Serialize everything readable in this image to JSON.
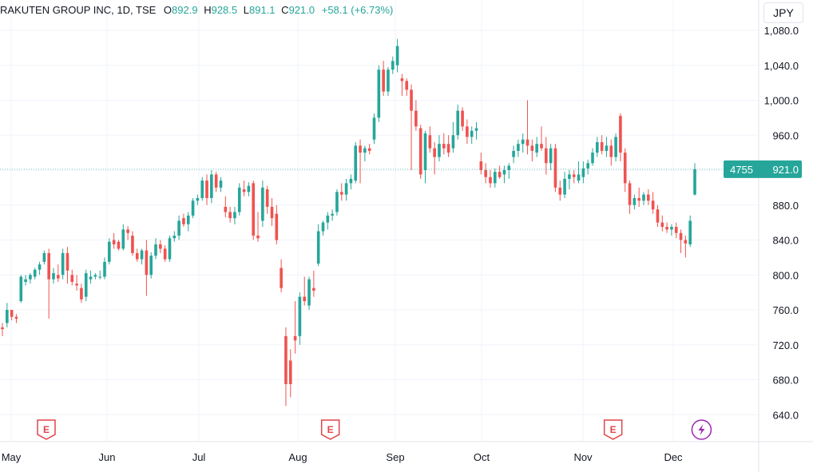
{
  "legend": {
    "symbol": "RAKUTEN GROUP INC, 1D, TSE",
    "open_label": "O",
    "open": "892.9",
    "high_label": "H",
    "high": "928.5",
    "low_label": "L",
    "low": "891.1",
    "close_label": "C",
    "close": "921.0",
    "change": "+58.1 (+6.73%)"
  },
  "currency_button": "JPY",
  "price_tag": {
    "countdown": "4755",
    "price": "921.0"
  },
  "colors": {
    "up": "#26a69a",
    "down": "#ef5350",
    "accent": "#26a69a",
    "event_earnings": "#e0454b",
    "event_flash": "#9c27b0"
  },
  "events": [
    {
      "month": "May",
      "day": 12,
      "type": "earnings",
      "icon": "earnings-e-icon",
      "label": "E"
    },
    {
      "month": "Aug",
      "day": 11,
      "type": "earnings",
      "icon": "earnings-e-icon",
      "label": "E"
    },
    {
      "month": "Nov",
      "day": 11,
      "type": "earnings",
      "icon": "earnings-e-icon",
      "label": "E"
    },
    {
      "month": "Dec",
      "day": 10,
      "type": "flash",
      "icon": "lightning-icon",
      "label": ""
    }
  ],
  "chart_data": {
    "type": "candlestick",
    "title": "",
    "xlabel": "",
    "ylabel": "",
    "x_tick_labels": [
      "May",
      "Jun",
      "Jul",
      "Aug",
      "Sep",
      "Oct",
      "Nov",
      "Dec"
    ],
    "y_tick_labels": [
      "640.0",
      "680.0",
      "720.0",
      "760.0",
      "800.0",
      "840.0",
      "880.0",
      "920.0",
      "960.0",
      "1,000.0",
      "1,040.0",
      "1,080.0"
    ],
    "ylim": [
      610,
      1090
    ],
    "grid": true,
    "last_price": 921.0,
    "series": [
      {
        "values": [
          [
            740,
            745,
            730,
            738
          ],
          [
            745,
            768,
            740,
            760
          ],
          [
            760,
            760,
            748,
            752
          ],
          [
            752,
            755,
            745,
            750
          ],
          [
            770,
            800,
            768,
            798
          ],
          [
            792,
            800,
            788,
            795
          ],
          [
            795,
            802,
            790,
            800
          ],
          [
            798,
            808,
            795,
            806
          ],
          [
            806,
            815,
            800,
            812
          ],
          [
            815,
            828,
            812,
            825
          ],
          [
            825,
            830,
            750,
            795
          ],
          [
            795,
            808,
            790,
            802
          ],
          [
            800,
            812,
            792,
            796
          ],
          [
            800,
            830,
            795,
            825
          ],
          [
            825,
            832,
            790,
            805
          ],
          [
            800,
            806,
            788,
            792
          ],
          [
            790,
            800,
            782,
            788
          ],
          [
            785,
            790,
            768,
            772
          ],
          [
            775,
            806,
            770,
            802
          ],
          [
            795,
            805,
            790,
            798
          ],
          [
            798,
            802,
            795,
            800
          ],
          [
            797,
            805,
            795,
            798
          ],
          [
            798,
            820,
            795,
            815
          ],
          [
            815,
            842,
            812,
            838
          ],
          [
            840,
            848,
            830,
            835
          ],
          [
            838,
            840,
            828,
            830
          ],
          [
            830,
            858,
            828,
            852
          ],
          [
            852,
            856,
            840,
            848
          ],
          [
            845,
            850,
            822,
            825
          ],
          [
            825,
            830,
            815,
            818
          ],
          [
            818,
            830,
            812,
            828
          ],
          [
            828,
            840,
            776,
            800
          ],
          [
            800,
            826,
            796,
            822
          ],
          [
            822,
            842,
            818,
            835
          ],
          [
            835,
            840,
            825,
            830
          ],
          [
            830,
            834,
            815,
            818
          ],
          [
            818,
            845,
            815,
            842
          ],
          [
            842,
            850,
            838,
            845
          ],
          [
            845,
            868,
            840,
            862
          ],
          [
            865,
            870,
            855,
            858
          ],
          [
            858,
            872,
            850,
            868
          ],
          [
            868,
            888,
            865,
            885
          ],
          [
            885,
            892,
            880,
            888
          ],
          [
            888,
            912,
            885,
            908
          ],
          [
            908,
            915,
            880,
            888
          ],
          [
            888,
            920,
            882,
            915
          ],
          [
            915,
            918,
            895,
            900
          ],
          [
            900,
            912,
            895,
            908
          ],
          [
            878,
            890,
            866,
            872
          ],
          [
            872,
            878,
            860,
            865
          ],
          [
            865,
            878,
            858,
            872
          ],
          [
            872,
            905,
            868,
            900
          ],
          [
            898,
            908,
            890,
            895
          ],
          [
            895,
            906,
            890,
            902
          ],
          [
            905,
            908,
            840,
            845
          ],
          [
            845,
            872,
            838,
            842
          ],
          [
            862,
            908,
            855,
            900
          ],
          [
            898,
            902,
            870,
            878
          ],
          [
            878,
            888,
            856,
            865
          ],
          [
            870,
            880,
            835,
            840
          ],
          [
            808,
            818,
            780,
            785
          ],
          [
            730,
            740,
            650,
            675
          ],
          [
            702,
            715,
            660,
            675
          ],
          [
            730,
            770,
            710,
            725
          ],
          [
            730,
            780,
            720,
            775
          ],
          [
            775,
            798,
            765,
            770
          ],
          [
            765,
            798,
            760,
            795
          ],
          [
            785,
            805,
            775,
            782
          ],
          [
            813,
            858,
            810,
            850
          ],
          [
            850,
            862,
            845,
            860
          ],
          [
            860,
            872,
            852,
            868
          ],
          [
            868,
            875,
            862,
            870
          ],
          [
            872,
            898,
            868,
            895
          ],
          [
            895,
            905,
            885,
            892
          ],
          [
            892,
            910,
            885,
            905
          ],
          [
            905,
            915,
            898,
            910
          ],
          [
            908,
            952,
            905,
            948
          ],
          [
            948,
            955,
            905,
            940
          ],
          [
            940,
            948,
            930,
            945
          ],
          [
            945,
            950,
            938,
            942
          ],
          [
            955,
            985,
            950,
            980
          ],
          [
            980,
            1040,
            975,
            1035
          ],
          [
            1035,
            1045,
            1005,
            1010
          ],
          [
            1010,
            1038,
            1005,
            1035
          ],
          [
            1035,
            1050,
            1030,
            1045
          ],
          [
            1040,
            1070,
            1032,
            1062
          ],
          [
            1025,
            1030,
            1005,
            1022
          ],
          [
            1022,
            1025,
            1005,
            1012
          ],
          [
            1012,
            1018,
            920,
            988
          ],
          [
            988,
            1000,
            965,
            970
          ],
          [
            968,
            972,
            910,
            915
          ],
          [
            920,
            965,
            905,
            962
          ],
          [
            960,
            970,
            940,
            945
          ],
          [
            945,
            952,
            915,
            935
          ],
          [
            935,
            960,
            930,
            950
          ],
          [
            950,
            962,
            938,
            945
          ],
          [
            950,
            960,
            935,
            940
          ],
          [
            945,
            975,
            940,
            960
          ],
          [
            960,
            995,
            955,
            988
          ],
          [
            988,
            992,
            965,
            970
          ],
          [
            970,
            978,
            950,
            958
          ],
          [
            958,
            970,
            950,
            965
          ],
          [
            965,
            975,
            955,
            968
          ],
          [
            930,
            940,
            915,
            920
          ],
          [
            920,
            928,
            905,
            912
          ],
          [
            912,
            920,
            900,
            905
          ],
          [
            905,
            922,
            900,
            918
          ],
          [
            918,
            925,
            910,
            912
          ],
          [
            915,
            925,
            905,
            920
          ],
          [
            920,
            928,
            910,
            925
          ],
          [
            935,
            948,
            928,
            942
          ],
          [
            942,
            955,
            935,
            950
          ],
          [
            950,
            962,
            940,
            955
          ],
          [
            955,
            1000,
            938,
            948
          ],
          [
            948,
            955,
            930,
            942
          ],
          [
            940,
            958,
            935,
            950
          ],
          [
            950,
            970,
            942,
            945
          ],
          [
            945,
            958,
            915,
            928
          ],
          [
            928,
            950,
            920,
            945
          ],
          [
            945,
            950,
            895,
            900
          ],
          [
            900,
            908,
            885,
            892
          ],
          [
            892,
            918,
            888,
            910
          ],
          [
            910,
            920,
            898,
            915
          ],
          [
            915,
            920,
            905,
            912
          ],
          [
            908,
            930,
            905,
            915
          ],
          [
            912,
            930,
            905,
            922
          ],
          [
            922,
            932,
            915,
            928
          ],
          [
            928,
            945,
            925,
            940
          ],
          [
            940,
            958,
            935,
            952
          ],
          [
            952,
            960,
            938,
            942
          ],
          [
            942,
            958,
            935,
            948
          ],
          [
            948,
            955,
            925,
            935
          ],
          [
            935,
            962,
            930,
            958
          ],
          [
            982,
            985,
            930,
            940
          ],
          [
            940,
            945,
            895,
            905
          ],
          [
            905,
            908,
            870,
            880
          ],
          [
            880,
            892,
            875,
            888
          ],
          [
            888,
            900,
            878,
            885
          ],
          [
            885,
            895,
            880,
            892
          ],
          [
            892,
            898,
            880,
            885
          ],
          [
            885,
            895,
            870,
            875
          ],
          [
            875,
            880,
            855,
            860
          ],
          [
            860,
            868,
            850,
            855
          ],
          [
            855,
            860,
            848,
            852
          ],
          [
            852,
            858,
            845,
            855
          ],
          [
            855,
            860,
            842,
            848
          ],
          [
            848,
            852,
            825,
            840
          ],
          [
            840,
            845,
            820,
            836
          ],
          [
            835,
            868,
            832,
            862
          ],
          [
            892,
            928,
            891,
            921
          ]
        ]
      }
    ]
  }
}
